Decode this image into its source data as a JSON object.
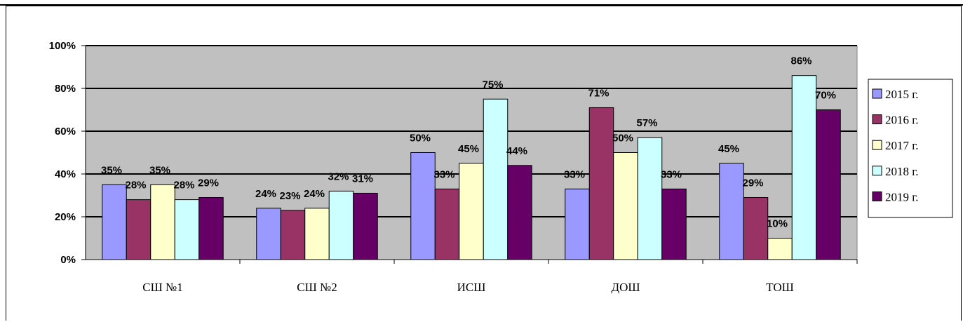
{
  "chart_data": {
    "type": "bar",
    "categories": [
      "СШ №1",
      "СШ №2",
      "ИСШ",
      "ДОШ",
      "ТОШ"
    ],
    "series": [
      {
        "name": "2015 г.",
        "color": "#9999ff",
        "values": [
          35,
          24,
          50,
          33,
          45
        ]
      },
      {
        "name": "2016 г.",
        "color": "#993366",
        "values": [
          28,
          23,
          33,
          71,
          29
        ]
      },
      {
        "name": "2017 г.",
        "color": "#ffffcc",
        "values": [
          35,
          24,
          45,
          50,
          10
        ]
      },
      {
        "name": "2018 г.",
        "color": "#ccffff",
        "values": [
          28,
          32,
          75,
          57,
          86
        ]
      },
      {
        "name": "2019 г.",
        "color": "#660066",
        "values": [
          29,
          31,
          44,
          33,
          70
        ]
      }
    ],
    "y_ticks": [
      "0%",
      "20%",
      "40%",
      "60%",
      "80%",
      "100%"
    ],
    "ylim": [
      0,
      100
    ],
    "value_suffix": "%",
    "plot_background": "#c0c0c0",
    "grid": true,
    "legend": "right"
  }
}
